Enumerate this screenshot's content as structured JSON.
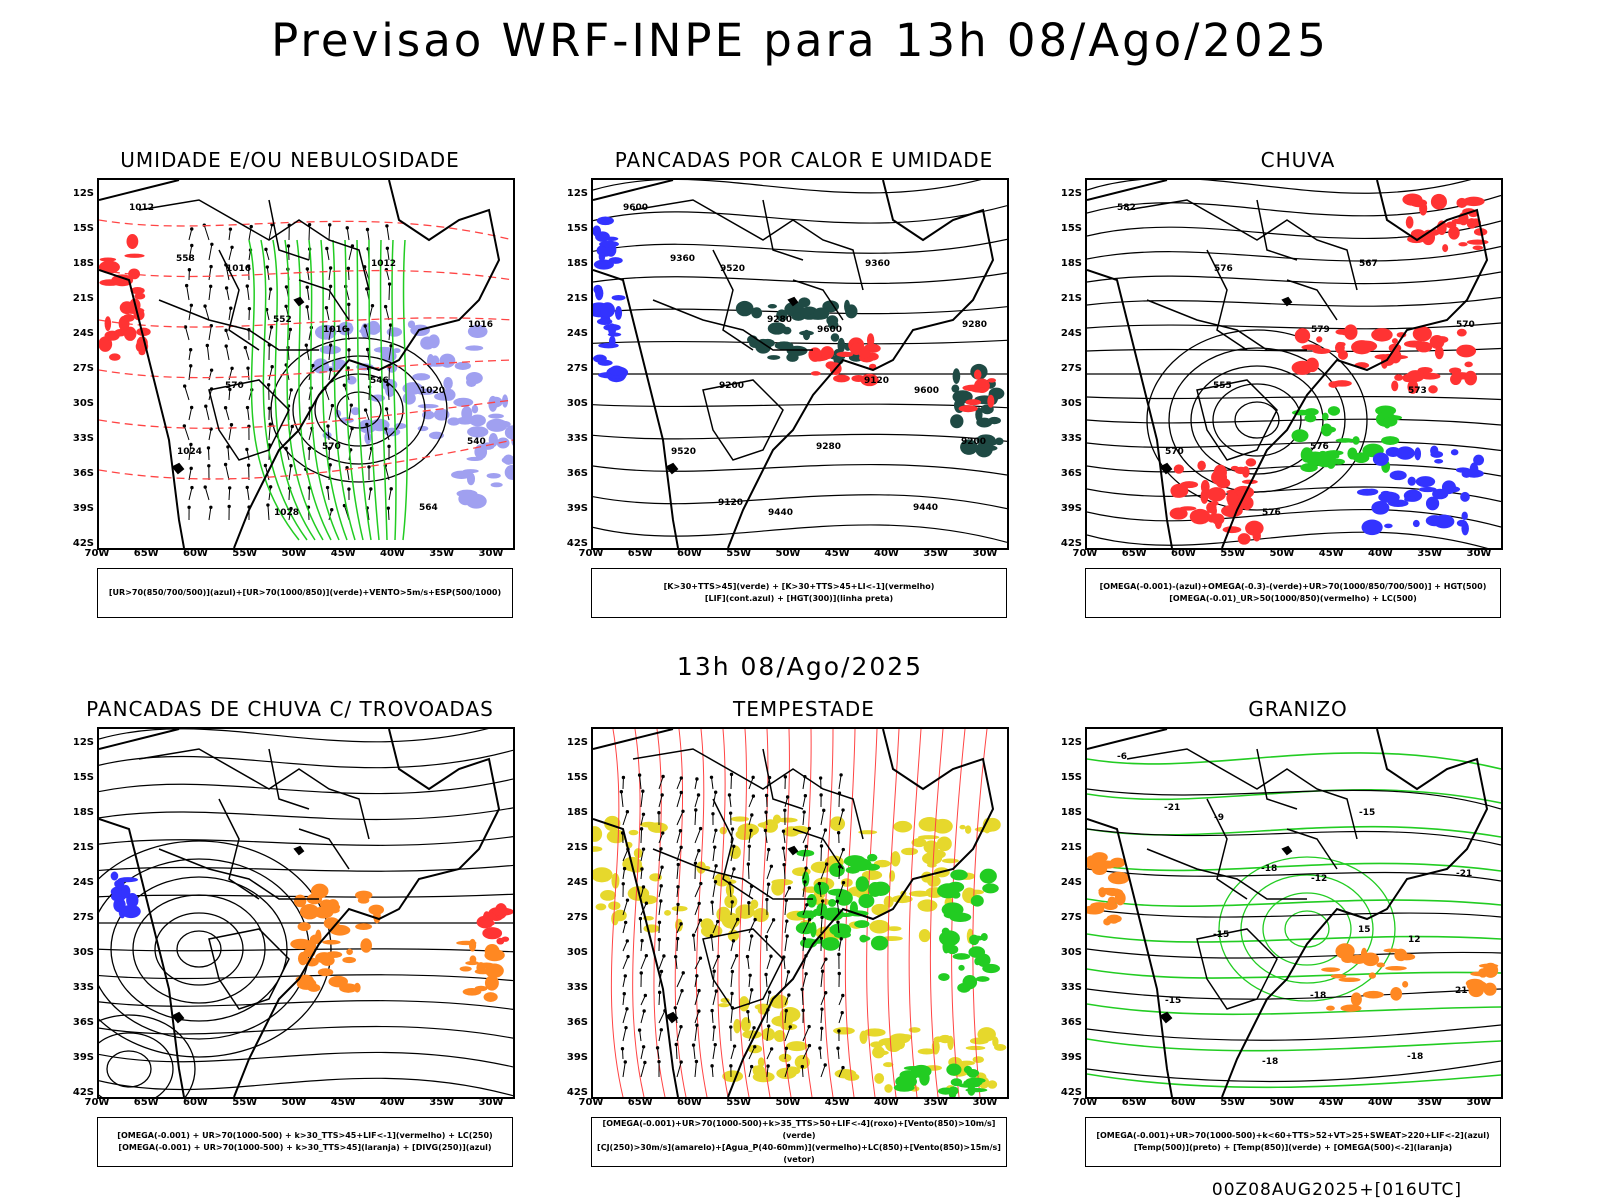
{
  "header": {
    "title": "Previsao WRF-INPE  para 13h 08/Ago/2025",
    "mid_title": "13h 08/Ago/2025",
    "footer": "00Z08AUG2025+[016UTC]"
  },
  "axes": {
    "lat_labels": [
      "12S",
      "15S",
      "18S",
      "21S",
      "24S",
      "27S",
      "30S",
      "33S",
      "36S",
      "39S",
      "42S"
    ],
    "lon_labels": [
      "70W",
      "65W",
      "60W",
      "55W",
      "50W",
      "45W",
      "40W",
      "35W",
      "30W"
    ]
  },
  "panels": [
    {
      "id": "umidade",
      "title": "UMIDADE E/OU NEBULOSIDADE",
      "legend": [
        "[UR>70(850/700/500)](azul)+[UR>70(1000/850)](verde)+VENTO>5m/s+ESP(500/1000)"
      ],
      "contour_labels": [
        "1012",
        "1016",
        "1016",
        "1020",
        "1024",
        "1028",
        "1012",
        "1016",
        "570",
        "570",
        "564",
        "558",
        "552",
        "546",
        "540"
      ]
    },
    {
      "id": "pancadas-calor",
      "title": "PANCADAS POR CALOR E UMIDADE",
      "legend": [
        "[K>30+TTS>45](verde) + [K>30+TTS>45+LI<-1](vermelho)",
        "[LIF](cont.azul) + [HGT(300)](linha preta)"
      ],
      "contour_labels": [
        "9600",
        "9520",
        "9600",
        "9600",
        "9520",
        "9440",
        "9360",
        "9280",
        "9200",
        "9280",
        "9440",
        "9360",
        "9280",
        "9120",
        "9200",
        "9120"
      ]
    },
    {
      "id": "chuva",
      "title": "CHUVA",
      "legend": [
        "[OMEGA(-0.001)-(azul)+OMEGA(-0.3)-(verde)+UR>70(1000/850/700/500)] + HGT(500)",
        "[OMEGA(-0.01)_UR>50(1000/850)(vermelho) + LC(500)"
      ],
      "contour_labels": [
        "582",
        "576",
        "579",
        "573",
        "570",
        "576",
        "567",
        "570",
        "555",
        "576"
      ]
    },
    {
      "id": "pancadas-trovoadas",
      "title": "PANCADAS DE CHUVA C/ TROVOADAS",
      "legend": [
        "[OMEGA(-0.001) + UR>70(1000-500) + k>30_TTS>45+LIF<-1](vermelho) + LC(250)",
        "[OMEGA(-0.001) + UR>70(1000-500) + k>30_TTS>45](laranja) + [DIVG(250)](azul)"
      ],
      "contour_labels": []
    },
    {
      "id": "tempestade",
      "title": "TEMPESTADE",
      "legend": [
        "[OMEGA(-0.001)+UR>70(1000-500)+k>35_TTS>50+LIF<-4](roxo)+[Vento(850)>10m/s](verde)",
        "[CJ(250)>30m/s](amarelo)+[Agua_P(40-60mm)](vermelho)+LC(850)+[Vento(850)>15m/s](vetor)"
      ],
      "contour_labels": []
    },
    {
      "id": "granizo",
      "title": "GRANIZO",
      "legend": [
        "[OMEGA(-0.001)+UR>70(1000-500)+k<60+TTS>52+VT>25+SWEAT>220+LIF<-2](azul)",
        "[Temp(500)](preto) + [Temp(850)](verde) + [OMEGA(500)<-2](laranja)"
      ],
      "contour_labels": [
        "-6",
        "-9",
        "-12",
        "12",
        "-15",
        "-18",
        "-15",
        "-21",
        "-15",
        "-18",
        "-18",
        "-21",
        "-18",
        "15",
        "21"
      ]
    }
  ],
  "colors": {
    "blue": "#3333ff",
    "lavender": "#a0a0f0",
    "green": "#22cc22",
    "red": "#ff3333",
    "darkgreen": "#1f4a44",
    "orange": "#ff8822",
    "yellow": "#e6d82c",
    "redline": "#ff4444"
  }
}
